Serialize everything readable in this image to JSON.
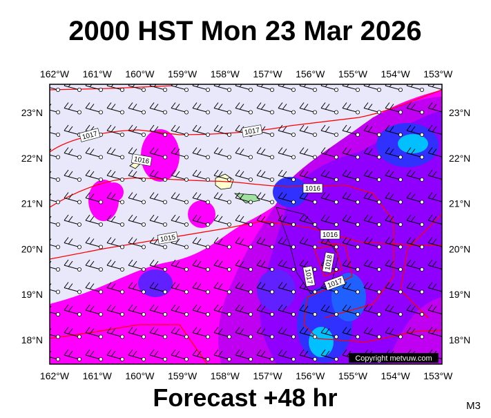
{
  "title": "2000 HST Mon 23 Mar 2026",
  "subtitle": "Forecast +48 hr",
  "model": "M3",
  "copyright": "Copyright metvuw.com",
  "lon_labels": [
    "162°W",
    "161°W",
    "160°W",
    "159°W",
    "158°W",
    "157°W",
    "156°W",
    "155°W",
    "154°W",
    "153°W"
  ],
  "lat_labels": [
    "23°N",
    "22°N",
    "21°N",
    "20°N",
    "19°N",
    "18°N"
  ],
  "isobar_labels": [
    "1017",
    "1017",
    "1016",
    "1016",
    "1015",
    "1016",
    "1018",
    "1017",
    "1017"
  ]
}
